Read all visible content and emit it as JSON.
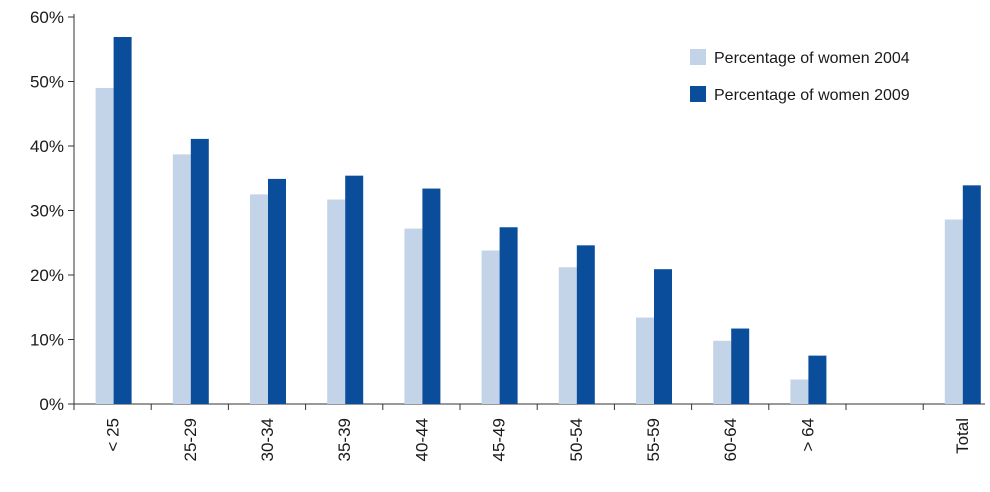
{
  "chart_data": {
    "type": "bar",
    "categories": [
      "< 25",
      "25-29",
      "30-34",
      "35-39",
      "40-44",
      "45-49",
      "50-54",
      "55-59",
      "60-64",
      "> 64",
      "",
      "Total"
    ],
    "series": [
      {
        "name": "Percentage of women 2004",
        "color": "#c3d4e8",
        "values": [
          49,
          38.7,
          32.5,
          31.7,
          27.2,
          23.8,
          21.2,
          13.4,
          9.8,
          3.8,
          null,
          28.6
        ]
      },
      {
        "name": "Percentage of women 2009",
        "color": "#0a4e9b",
        "values": [
          56.9,
          41.1,
          34.9,
          35.4,
          33.4,
          27.4,
          24.6,
          20.9,
          11.7,
          7.5,
          null,
          33.9
        ]
      }
    ],
    "y_ticks": [
      "0%",
      "10%",
      "20%",
      "30%",
      "40%",
      "50%",
      "60%"
    ],
    "ylim": [
      0,
      60
    ],
    "title": "",
    "xlabel": "",
    "ylabel": "",
    "grid": false,
    "legend_position": "top-right"
  }
}
